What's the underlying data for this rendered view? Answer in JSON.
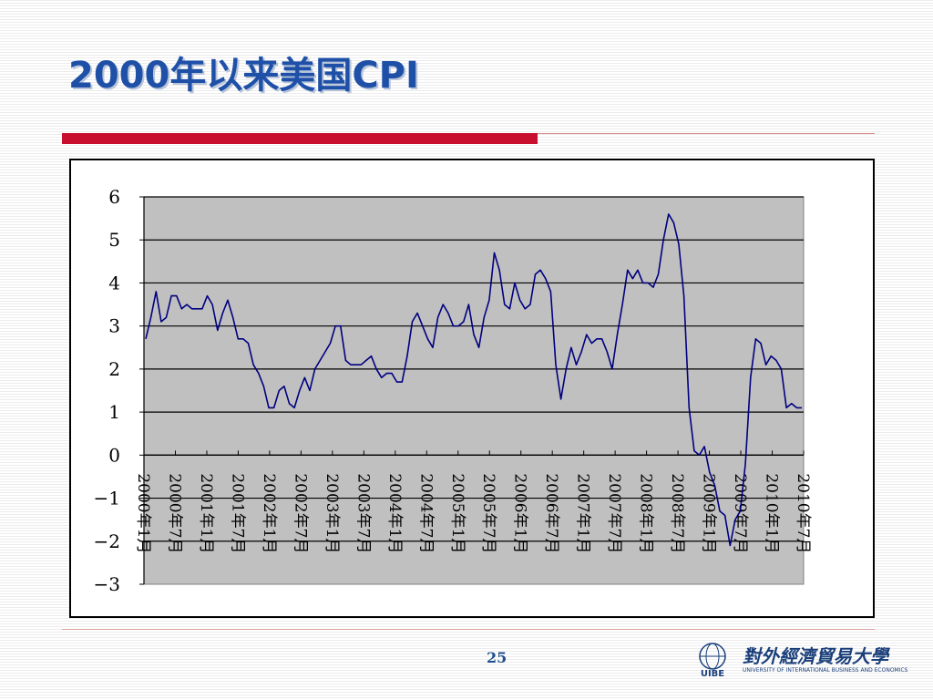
{
  "slide": {
    "title": "2000年以来美国CPI",
    "page_number": "25"
  },
  "logo": {
    "cn_text": "對外經濟貿易大學",
    "en_text": "UNIVERSITY OF INTERNATIONAL BUSINESS AND ECONOMICS",
    "badge_text": "UIBE"
  },
  "colors": {
    "title": "#1f50a8",
    "accent_red": "#c8102e",
    "series_line": "#000080",
    "plot_bg": "#c0c0c0"
  },
  "chart_data": {
    "type": "line",
    "title": "",
    "xlabel": "",
    "ylabel": "",
    "ylim": [
      -3,
      6
    ],
    "yticks": [
      "6",
      "5",
      "4",
      "3",
      "2",
      "1",
      "0",
      "−1",
      "−2",
      "−3"
    ],
    "x_tick_labels": [
      "2000年1月",
      "2000年7月",
      "2001年1月",
      "2001年7月",
      "2002年1月",
      "2002年7月",
      "2003年1月",
      "2003年7月",
      "2004年1月",
      "2004年7月",
      "2005年1月",
      "2005年7月",
      "2006年1月",
      "2006年7月",
      "2007年1月",
      "2007年7月",
      "2008年1月",
      "2008年7月",
      "2009年1月",
      "2009年7月",
      "2010年1月",
      "2010年7月"
    ],
    "grid": "horizontal",
    "legend": "none",
    "series": [
      {
        "values": [
          2.7,
          3.2,
          3.8,
          3.1,
          3.2,
          3.7,
          3.7,
          3.4,
          3.5,
          3.4,
          3.4,
          3.4,
          3.7,
          3.5,
          2.9,
          3.3,
          3.6,
          3.2,
          2.7,
          2.7,
          2.6,
          2.1,
          1.9,
          1.6,
          1.1,
          1.1,
          1.5,
          1.6,
          1.2,
          1.1,
          1.5,
          1.8,
          1.5,
          2.0,
          2.2,
          2.4,
          2.6,
          3.0,
          3.0,
          2.2,
          2.1,
          2.1,
          2.1,
          2.2,
          2.3,
          2.0,
          1.8,
          1.9,
          1.9,
          1.7,
          1.7,
          2.3,
          3.1,
          3.3,
          3.0,
          2.7,
          2.5,
          3.2,
          3.5,
          3.3,
          3.0,
          3.0,
          3.1,
          3.5,
          2.8,
          2.5,
          3.2,
          3.6,
          4.7,
          4.3,
          3.5,
          3.4,
          4.0,
          3.6,
          3.4,
          3.5,
          4.2,
          4.3,
          4.1,
          3.8,
          2.1,
          1.3,
          2.0,
          2.5,
          2.1,
          2.4,
          2.8,
          2.6,
          2.7,
          2.7,
          2.4,
          2.0,
          2.8,
          3.5,
          4.3,
          4.1,
          4.3,
          4.0,
          4.0,
          3.9,
          4.2,
          5.0,
          5.6,
          5.4,
          4.9,
          3.7,
          1.1,
          0.1,
          0.0,
          0.2,
          -0.4,
          -0.7,
          -1.3,
          -1.4,
          -2.1,
          -1.5,
          -1.3,
          -0.2,
          1.8,
          2.7,
          2.6,
          2.1,
          2.3,
          2.2,
          2.0,
          1.1,
          1.2,
          1.1,
          1.1
        ]
      }
    ]
  }
}
